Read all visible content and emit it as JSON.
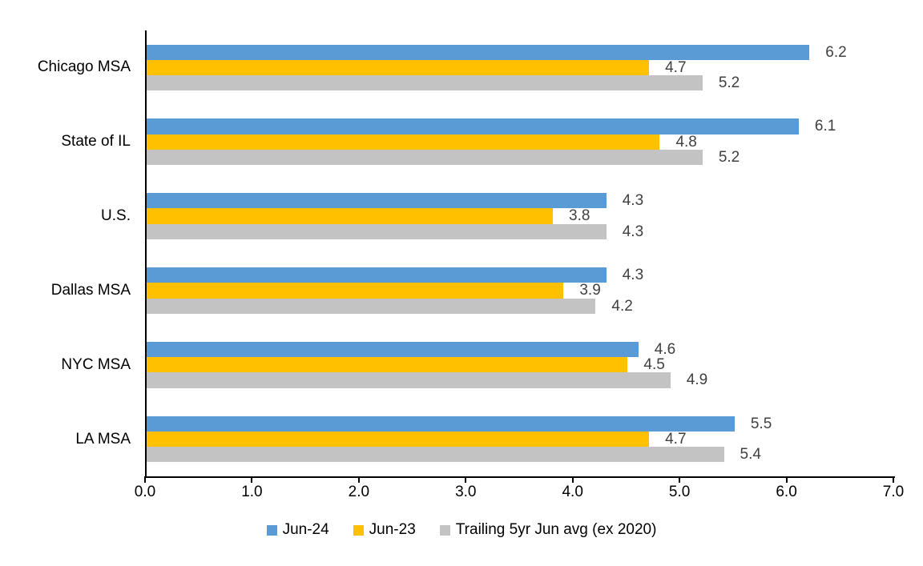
{
  "page": {
    "background": "#ffffff"
  },
  "chart_data": {
    "type": "bar",
    "orientation": "horizontal",
    "title": "",
    "categories": [
      "Chicago MSA",
      "State of IL",
      "U.S.",
      "Dallas MSA",
      "NYC MSA",
      "LA MSA"
    ],
    "series": [
      {
        "name": "Jun-24",
        "color": "#5B9BD5",
        "values": [
          6.2,
          6.1,
          4.3,
          4.3,
          4.6,
          5.5
        ]
      },
      {
        "name": "Jun-23",
        "color": "#FFC000",
        "values": [
          4.7,
          4.8,
          3.8,
          3.9,
          4.5,
          4.7
        ]
      },
      {
        "name": "Trailing 5yr Jun avg (ex 2020)",
        "color": "#C3C3C3",
        "values": [
          5.2,
          5.2,
          4.3,
          4.2,
          4.9,
          5.4
        ]
      }
    ],
    "xlim": [
      0,
      7
    ],
    "x_tick_labels": [
      "0.0",
      "1.0",
      "2.0",
      "3.0",
      "4.0",
      "5.0",
      "6.0",
      "7.0"
    ],
    "value_labels_shown": true,
    "value_label_decimals": 1,
    "value_label_color": "#404040",
    "axis_color": "#000000",
    "grid": false,
    "legend_position": "bottom"
  }
}
